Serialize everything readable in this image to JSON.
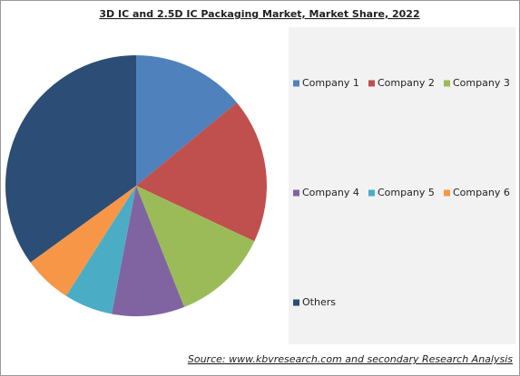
{
  "chart_data": {
    "type": "pie",
    "title": "3D IC and 2.5D IC Packaging Market, Market Share, 2022",
    "categories": [
      "Company 1",
      "Company 2",
      "Company 3",
      "Company 4",
      "Company 5",
      "Company 6",
      "Others"
    ],
    "values": [
      14,
      18,
      12,
      9,
      6,
      6,
      35
    ],
    "colors": [
      "#4f81bd",
      "#c0504d",
      "#9bbb59",
      "#8064a2",
      "#4bacc6",
      "#f79646",
      "#2c4d75"
    ],
    "source": "Source:  www.kbvresearch.com  and secondary Research  Analysis"
  }
}
